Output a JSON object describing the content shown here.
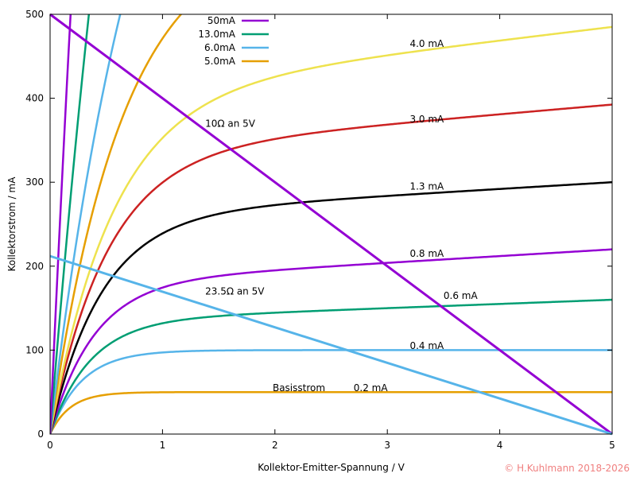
{
  "chart_data": {
    "type": "line",
    "xlabel": "Kollektor-Emitter-Spannung / V",
    "ylabel": "Kollektorstrom / mA",
    "xlim": [
      0,
      5
    ],
    "ylim": [
      0,
      500
    ],
    "xticks": [
      0,
      1,
      2,
      3,
      4,
      5
    ],
    "yticks": [
      0,
      100,
      200,
      300,
      400,
      500
    ],
    "grid": false,
    "legend": {
      "placement": "top-left",
      "entries": [
        {
          "label": "50mA",
          "color": "#9400d3"
        },
        {
          "label": "13.0mA",
          "color": "#009e73"
        },
        {
          "label": "6.0mA",
          "color": "#56b4e9"
        },
        {
          "label": "5.0mA",
          "color": "#e69f00"
        }
      ]
    },
    "series": [
      {
        "name": "0.2 mA",
        "color": "#e69f00",
        "saturation": 50,
        "slope": 0,
        "tau": 0.18
      },
      {
        "name": "0.4 mA",
        "color": "#56b4e9",
        "saturation": 100,
        "slope": 0,
        "tau": 0.28
      },
      {
        "name": "0.6 mA",
        "color": "#009e73",
        "saturation": 135,
        "slope": 5,
        "tau": 0.35
      },
      {
        "name": "0.8 mA",
        "color": "#9400d3",
        "saturation": 180,
        "slope": 8,
        "tau": 0.38
      },
      {
        "name": "1.3 mA",
        "color": "#000000",
        "saturation": 260,
        "slope": 8,
        "tau": 0.45
      },
      {
        "name": "3.0 mA",
        "color": "#cc2222",
        "saturation": 335,
        "slope": 11.5,
        "tau": 0.5
      },
      {
        "name": "4.0 mA",
        "color": "#eee24e",
        "saturation": 405,
        "slope": 16,
        "tau": 0.55
      },
      {
        "name": "5.0mA",
        "color": "#e69f00",
        "saturation": 600,
        "slope": 0,
        "tau": 0.65
      },
      {
        "name": "6.0mA",
        "color": "#56b4e9",
        "saturation": 1000,
        "slope": 0,
        "tau": 0.9
      },
      {
        "name": "13.0mA",
        "color": "#009e73",
        "saturation": 2000,
        "slope": 0,
        "tau": 1.2
      },
      {
        "name": "50mA",
        "color": "#9400d3",
        "saturation": 3000,
        "slope": 0,
        "tau": 1.0
      }
    ],
    "load_lines": [
      {
        "name": "10Ω an 5V",
        "color": "#9400d3",
        "x": [
          0,
          5
        ],
        "y": [
          500,
          0
        ]
      },
      {
        "name": "23.5Ω an 5V",
        "color": "#56b4e9",
        "x": [
          0,
          5
        ],
        "y": [
          212,
          0
        ]
      }
    ],
    "annotations": [
      {
        "text": "4.0 mA",
        "x": 3.2,
        "y": 465
      },
      {
        "text": "3.0 mA",
        "x": 3.2,
        "y": 375
      },
      {
        "text": "1.3 mA",
        "x": 3.2,
        "y": 295
      },
      {
        "text": "0.8 mA",
        "x": 3.2,
        "y": 215
      },
      {
        "text": "0.6 mA",
        "x": 3.5,
        "y": 165
      },
      {
        "text": "0.4 mA",
        "x": 3.2,
        "y": 105
      },
      {
        "text": "0.2 mA",
        "x": 2.7,
        "y": 55
      },
      {
        "text": "Basisstrom",
        "x": 1.98,
        "y": 55
      },
      {
        "text": "10Ω an 5V",
        "x": 1.38,
        "y": 370
      },
      {
        "text": "23.5Ω an 5V",
        "x": 1.38,
        "y": 170
      }
    ]
  },
  "copyright": "© H.Kuhlmann 2018-2026"
}
